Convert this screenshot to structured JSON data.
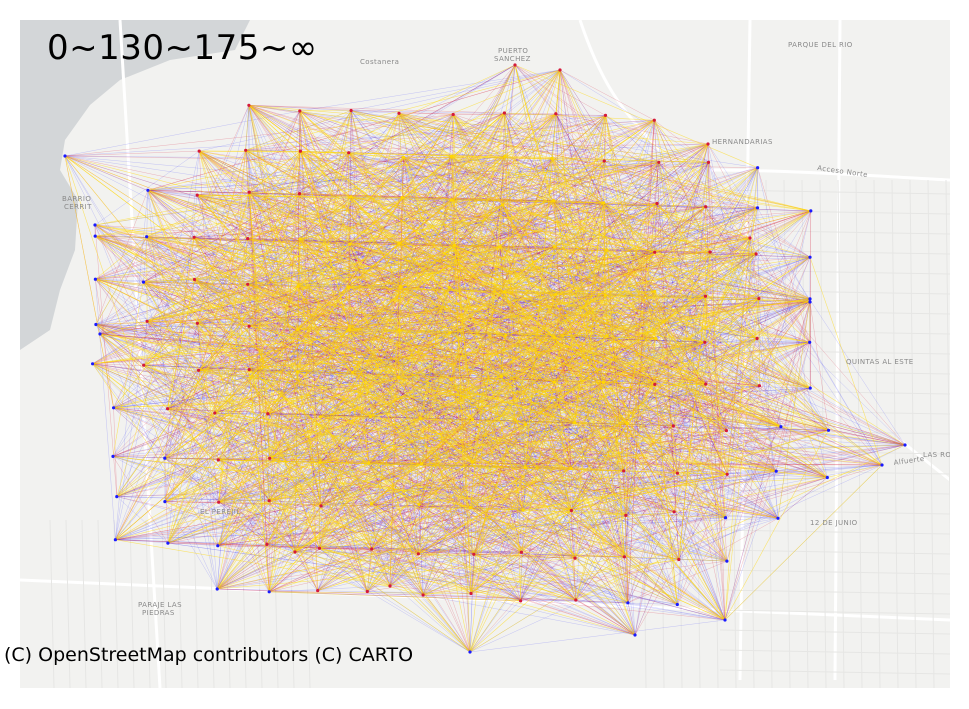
{
  "legend": {
    "title": "0~130~175~∞"
  },
  "attribution": "(C) OpenStreetMap contributors (C) CARTO",
  "places": {
    "puerto_sanchez_1": "PUERTO",
    "puerto_sanchez_2": "SANCHEZ",
    "parque_del_rio": "PARQUE DEL RIO",
    "hernandarias": "HERNANDARIAS",
    "acceso_norte": "Acceso Norte",
    "quintas_al_este": "QUINTAS AL ESTE",
    "las_rosas": "LAS ROS",
    "el_perejil": "EL PEREJIL",
    "paraje_las_piedras_1": "PARAJE LAS",
    "paraje_las_piedras_2": "PIEDRAS",
    "doce_de_junio": "12 DE JUNIO",
    "barrio": "BARRIO",
    "cerrito": "CERRIT",
    "alfuerte": "Alfuerte",
    "costanera": "Costanera"
  },
  "colors": {
    "water": "#d3d6d8",
    "land": "#f2f2f0",
    "roads": "#ffffff",
    "low_band": "#1a1aff",
    "mid_band": "#d41a3a",
    "high_band": "#ffd700"
  }
}
